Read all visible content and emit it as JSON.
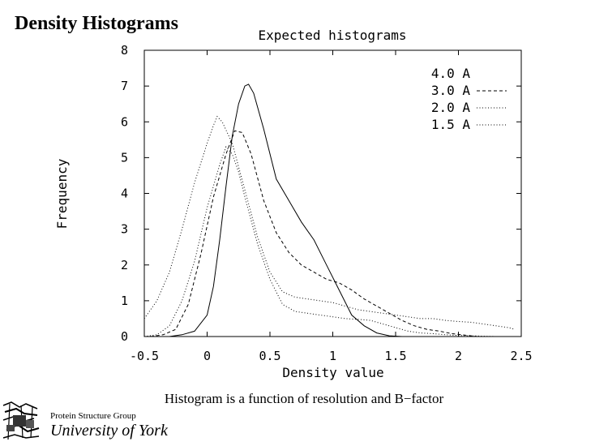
{
  "slide": {
    "title": "Density Histograms",
    "caption": "Histogram is a function of resolution and B−factor"
  },
  "footer": {
    "group": "Protein Structure Group",
    "university": "University of York"
  },
  "chart_data": {
    "type": "line",
    "title": "Expected histograms",
    "xlabel": "Density value",
    "ylabel": "Frequency",
    "xlim": [
      -0.5,
      2.5
    ],
    "ylim": [
      0,
      8
    ],
    "xticks": [
      -0.5,
      0,
      0.5,
      1,
      1.5,
      2,
      2.5
    ],
    "xtick_labels": [
      "-0.5",
      "0",
      "0.5",
      "1",
      "1.5",
      "2",
      "2.5"
    ],
    "yticks": [
      0,
      1,
      2,
      3,
      4,
      5,
      6,
      7,
      8
    ],
    "ytick_labels": [
      "0",
      "1",
      "2",
      "3",
      "4",
      "5",
      "6",
      "7",
      "8"
    ],
    "grid": false,
    "legend_position": "top-right",
    "series": [
      {
        "name": "4.0 A",
        "dash": "solid",
        "x": [
          -0.35,
          -0.3,
          -0.2,
          -0.1,
          0.0,
          0.05,
          0.1,
          0.15,
          0.2,
          0.25,
          0.3,
          0.33,
          0.37,
          0.45,
          0.55,
          0.65,
          0.75,
          0.85,
          0.95,
          1.05,
          1.15,
          1.25,
          1.35,
          1.45,
          1.55
        ],
        "y": [
          0.0,
          0.0,
          0.05,
          0.15,
          0.6,
          1.4,
          2.7,
          4.2,
          5.6,
          6.5,
          7.0,
          7.05,
          6.8,
          5.8,
          4.4,
          3.8,
          3.2,
          2.7,
          2.0,
          1.3,
          0.6,
          0.3,
          0.1,
          0.02,
          0.0
        ]
      },
      {
        "name": "3.0 A",
        "dash": "dashed",
        "x": [
          -0.45,
          -0.35,
          -0.25,
          -0.15,
          -0.05,
          0.05,
          0.15,
          0.22,
          0.28,
          0.35,
          0.45,
          0.55,
          0.65,
          0.75,
          0.85,
          0.95,
          1.05,
          1.15,
          1.25,
          1.35,
          1.45,
          1.55,
          1.65,
          1.75,
          1.85,
          1.95,
          2.05,
          2.15
        ],
        "y": [
          0.0,
          0.05,
          0.2,
          0.9,
          2.3,
          3.9,
          5.1,
          5.75,
          5.7,
          5.1,
          3.8,
          2.9,
          2.35,
          2.0,
          1.8,
          1.6,
          1.5,
          1.3,
          1.05,
          0.85,
          0.65,
          0.45,
          0.3,
          0.2,
          0.15,
          0.08,
          0.04,
          0.0
        ]
      },
      {
        "name": "2.0 A",
        "dash": "dotted",
        "x": [
          -0.5,
          -0.4,
          -0.3,
          -0.2,
          -0.1,
          0.0,
          0.05,
          0.08,
          0.12,
          0.2,
          0.3,
          0.4,
          0.5,
          0.6,
          0.7,
          0.8,
          0.9,
          1.0,
          1.1,
          1.2,
          1.3,
          1.4,
          1.5,
          1.6,
          1.7,
          1.8,
          1.9,
          2.0,
          2.1,
          2.2,
          2.3,
          2.4,
          2.45
        ],
        "y": [
          0.5,
          1.0,
          1.8,
          3.0,
          4.3,
          5.4,
          5.9,
          6.15,
          6.0,
          5.4,
          4.1,
          2.8,
          1.8,
          1.25,
          1.1,
          1.05,
          1.0,
          0.95,
          0.85,
          0.75,
          0.7,
          0.65,
          0.6,
          0.55,
          0.5,
          0.5,
          0.45,
          0.42,
          0.4,
          0.35,
          0.3,
          0.25,
          0.2
        ]
      },
      {
        "name": "1.5 A",
        "dash": "dotted",
        "x": [
          -0.5,
          -0.4,
          -0.3,
          -0.2,
          -0.1,
          0.0,
          0.1,
          0.15,
          0.2,
          0.25,
          0.3,
          0.4,
          0.5,
          0.6,
          0.7,
          0.8,
          0.9,
          1.0,
          1.1,
          1.2,
          1.3,
          1.4,
          1.5,
          1.6,
          1.7,
          1.8,
          1.9,
          2.0,
          2.1,
          2.2,
          2.3
        ],
        "y": [
          0.0,
          0.05,
          0.3,
          1.0,
          2.1,
          3.6,
          4.8,
          5.3,
          5.1,
          4.6,
          3.9,
          2.6,
          1.6,
          0.9,
          0.7,
          0.65,
          0.6,
          0.55,
          0.5,
          0.48,
          0.45,
          0.35,
          0.25,
          0.15,
          0.1,
          0.08,
          0.05,
          0.03,
          0.02,
          0.01,
          0.0
        ]
      }
    ]
  }
}
